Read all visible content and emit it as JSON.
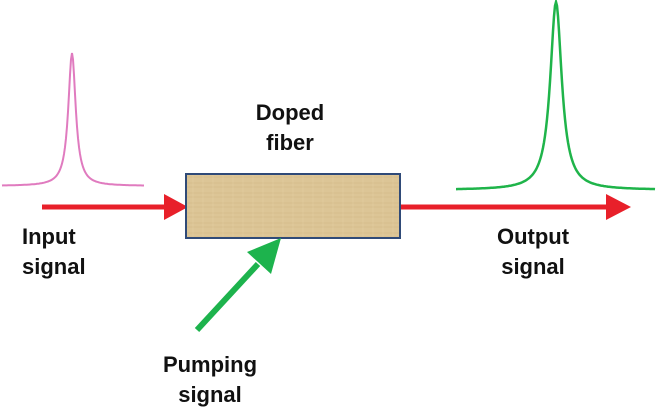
{
  "labels": {
    "doped_fiber": [
      "Doped",
      "fiber"
    ],
    "input_signal": [
      "Input",
      "signal"
    ],
    "output_signal": [
      "Output",
      "signal"
    ],
    "pumping_signal": [
      "Pumping",
      "signal"
    ]
  },
  "colors": {
    "input_pulse": "#e07bbf",
    "output_pulse": "#1fb44a",
    "signal_arrow": "#e8202a",
    "pump_arrow": "#1db34d",
    "fiber_fill": "#dcc596",
    "fiber_border": "#2f4a78",
    "text": "#111111"
  }
}
